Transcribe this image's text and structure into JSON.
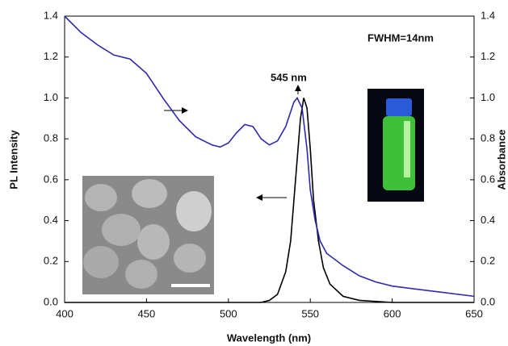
{
  "chart_data": {
    "type": "line",
    "x_label": "Wavelength (nm)",
    "y_label": "PL Intensity",
    "y2_label": "Absorbance",
    "annotations": [
      "FWHM=14nm",
      "545 nm"
    ],
    "xlim": [
      400,
      650
    ],
    "xticks": [
      400,
      450,
      500,
      550,
      600,
      650
    ],
    "ylim": [
      0,
      1.4
    ],
    "yticks": [
      {
        "value": 0,
        "label": "0.0"
      },
      0.2,
      0.4,
      0.6,
      0.8,
      {
        "value": 1,
        "label": "1.0"
      },
      1.2,
      1.4
    ],
    "y2lim": [
      0,
      1.4
    ],
    "y2ticks": [
      {
        "value": 0,
        "label": "0.0"
      },
      0.2,
      0.4,
      0.6,
      0.8,
      {
        "value": 1,
        "label": "1.0"
      },
      1.2,
      1.4
    ],
    "series": [
      {
        "color": "#000000",
        "x": [
          400,
          450,
          500,
          520,
          525,
          530,
          535,
          538,
          541,
          544,
          546,
          548,
          550,
          552,
          555,
          558,
          562,
          570,
          580,
          600,
          650
        ],
        "values": [
          0,
          0,
          0,
          0,
          0.01,
          0.04,
          0.15,
          0.3,
          0.6,
          0.9,
          1.0,
          0.95,
          0.75,
          0.5,
          0.3,
          0.17,
          0.09,
          0.03,
          0.01,
          0,
          0
        ]
      },
      {
        "color": "#2b2bb0",
        "axis": "y2",
        "x": [
          400,
          410,
          420,
          430,
          440,
          450,
          460,
          470,
          480,
          490,
          495,
          500,
          505,
          510,
          515,
          520,
          525,
          530,
          535,
          540,
          542,
          545,
          548,
          550,
          553,
          556,
          560,
          570,
          580,
          590,
          600,
          620,
          650
        ],
        "values": [
          1.4,
          1.32,
          1.26,
          1.21,
          1.19,
          1.12,
          1.0,
          0.89,
          0.81,
          0.77,
          0.76,
          0.78,
          0.83,
          0.87,
          0.86,
          0.8,
          0.77,
          0.79,
          0.86,
          0.98,
          1.0,
          0.95,
          0.75,
          0.55,
          0.4,
          0.3,
          0.24,
          0.18,
          0.13,
          0.1,
          0.08,
          0.06,
          0.03
        ]
      }
    ]
  }
}
